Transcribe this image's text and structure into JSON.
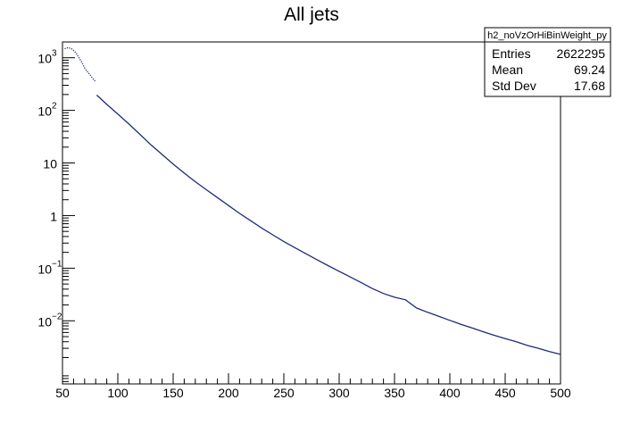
{
  "chart_data": {
    "type": "line",
    "title": "All jets",
    "xlabel": "",
    "ylabel": "",
    "x_range": [
      50,
      500
    ],
    "y_range_log10": [
      -3.2,
      3.3
    ],
    "y_scale": "log",
    "grid": false,
    "x_ticks": [
      "50",
      "100",
      "150",
      "200",
      "250",
      "300",
      "350",
      "400",
      "450",
      "500"
    ],
    "y_ticks": [
      {
        "value": 0.01,
        "base": "10",
        "exp": "−2"
      },
      {
        "value": 0.1,
        "base": "10",
        "exp": "−1"
      },
      {
        "value": 1,
        "base": "1",
        "exp": ""
      },
      {
        "value": 10,
        "base": "10",
        "exp": ""
      },
      {
        "value": 100,
        "base": "10",
        "exp": "2"
      },
      {
        "value": 1000,
        "base": "10",
        "exp": "3"
      }
    ],
    "series": [
      {
        "color": "#1f2a7a",
        "x": [
          52,
          55,
          58,
          60,
          62,
          65,
          68,
          70,
          72,
          75,
          78,
          80
        ],
        "y": [
          1480,
          1560,
          1490,
          1380,
          1250,
          1000,
          780,
          640,
          560,
          470,
          390,
          350
        ],
        "note_segment": "low"
      },
      {
        "color": "#1f2a7a",
        "x": [
          81,
          90,
          100,
          110,
          120,
          130,
          140,
          150,
          160,
          170,
          180,
          190,
          200,
          210,
          220,
          230,
          240,
          250,
          260,
          270,
          280,
          290,
          300,
          310,
          320,
          330,
          340,
          350,
          360,
          370,
          380,
          390,
          400,
          410,
          420,
          430,
          440,
          450,
          460,
          470,
          480,
          490,
          500
        ],
        "y": [
          195,
          130,
          85,
          55,
          35,
          22,
          14.5,
          9.5,
          6.4,
          4.4,
          3.1,
          2.2,
          1.55,
          1.1,
          0.8,
          0.58,
          0.43,
          0.32,
          0.245,
          0.188,
          0.145,
          0.112,
          0.087,
          0.068,
          0.053,
          0.041,
          0.033,
          0.028,
          0.025,
          0.0175,
          0.0145,
          0.0122,
          0.0102,
          0.0086,
          0.0073,
          0.0062,
          0.0053,
          0.0046,
          0.004,
          0.0034,
          0.003,
          0.0026,
          0.0023
        ]
      }
    ]
  },
  "stats": {
    "name": "h2_noVzOrHiBinWeight_py",
    "rows": [
      {
        "label": "Entries",
        "value": "2622295"
      },
      {
        "label": "Mean",
        "value": "69.24"
      },
      {
        "label": "Std Dev",
        "value": "17.68"
      }
    ]
  }
}
